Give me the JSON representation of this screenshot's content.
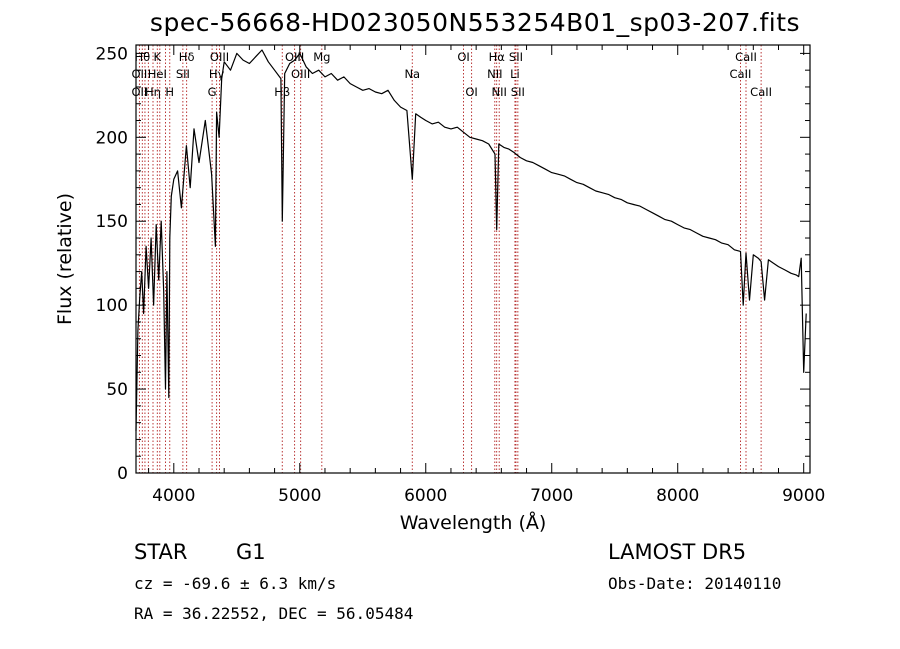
{
  "header": {
    "title": "spec-56668-HD023050N553254B01_sp03-207.fits"
  },
  "footer": {
    "class_label": "STAR",
    "subclass_label": "G1",
    "survey": "LAMOST DR5",
    "redshift": "cz = -69.6 ± 6.3 km/s",
    "obs_date": "Obs-Date: 20140110",
    "coords": "RA =  36.22552, DEC =  56.05484"
  },
  "chart_data": {
    "type": "line",
    "title": "spec-56668-HD023050N553254B01_sp03-207.fits",
    "xlabel": "Wavelength (Å)",
    "ylabel": "Flux (relative)",
    "xlim": [
      3700,
      9050
    ],
    "ylim": [
      0,
      255
    ],
    "xticks": [
      4000,
      5000,
      6000,
      7000,
      8000,
      9000
    ],
    "yticks": [
      0,
      50,
      100,
      150,
      200,
      250
    ],
    "grid": false,
    "series": [
      {
        "x": [
          3700,
          3715,
          3730,
          3745,
          3760,
          3780,
          3800,
          3820,
          3840,
          3860,
          3880,
          3900,
          3920,
          3934,
          3945,
          3960,
          3968,
          3980,
          4000,
          4030,
          4060,
          4100,
          4130,
          4160,
          4200,
          4250,
          4300,
          4330,
          4340,
          4360,
          4380,
          4400,
          4450,
          4500,
          4550,
          4600,
          4650,
          4700,
          4750,
          4800,
          4850,
          4861,
          4880,
          4920,
          4960,
          5000,
          5050,
          5100,
          5150,
          5200,
          5250,
          5300,
          5350,
          5400,
          5450,
          5500,
          5550,
          5600,
          5650,
          5700,
          5750,
          5800,
          5850,
          5893,
          5920,
          5960,
          6000,
          6050,
          6100,
          6150,
          6200,
          6250,
          6300,
          6350,
          6400,
          6450,
          6500,
          6550,
          6563,
          6580,
          6620,
          6660,
          6700,
          6750,
          6800,
          6850,
          6900,
          6950,
          7000,
          7050,
          7100,
          7150,
          7200,
          7250,
          7300,
          7350,
          7400,
          7450,
          7500,
          7550,
          7600,
          7650,
          7700,
          7750,
          7800,
          7850,
          7900,
          7950,
          8000,
          8050,
          8100,
          8150,
          8200,
          8250,
          8300,
          8350,
          8400,
          8450,
          8498,
          8520,
          8542,
          8570,
          8600,
          8640,
          8662,
          8690,
          8720,
          8760,
          8800,
          8850,
          8900,
          8940,
          8960,
          8980,
          9000,
          9020
        ],
        "y": [
          25,
          85,
          105,
          120,
          95,
          135,
          110,
          140,
          100,
          148,
          115,
          150,
          108,
          50,
          120,
          45,
          140,
          165,
          175,
          180,
          158,
          195,
          170,
          205,
          185,
          210,
          178,
          135,
          215,
          200,
          235,
          245,
          240,
          250,
          246,
          244,
          248,
          252,
          245,
          240,
          235,
          150,
          238,
          244,
          246,
          250,
          242,
          238,
          240,
          236,
          238,
          234,
          236,
          232,
          230,
          228,
          229,
          227,
          226,
          228,
          222,
          218,
          216,
          175,
          214,
          212,
          210,
          208,
          209,
          206,
          205,
          206,
          203,
          200,
          199,
          198,
          196,
          190,
          145,
          196,
          194,
          193,
          191,
          188,
          186,
          185,
          183,
          181,
          179,
          178,
          177,
          175,
          173,
          172,
          170,
          168,
          167,
          166,
          164,
          163,
          161,
          160,
          159,
          157,
          155,
          153,
          151,
          150,
          148,
          146,
          145,
          143,
          141,
          140,
          139,
          137,
          136,
          133,
          132,
          100,
          131,
          103,
          130,
          128,
          126,
          103,
          127,
          125,
          123,
          121,
          119,
          118,
          117,
          128,
          60,
          95
        ]
      }
    ],
    "lines": [
      {
        "wl": 3727,
        "labels": [
          {
            "t": "OII",
            "row": 1
          },
          {
            "t": "OII",
            "row": 2
          }
        ],
        "pos": "top"
      },
      {
        "wl": 3750,
        "labels": [
          {
            "t": "Hθ",
            "row": 0
          }
        ],
        "pos": "top"
      },
      {
        "wl": 3771,
        "labels": [],
        "pos": "top"
      },
      {
        "wl": 3798,
        "labels": [],
        "pos": "top"
      },
      {
        "wl": 3835,
        "labels": [
          {
            "t": "Hη",
            "row": 2
          }
        ],
        "pos": "top"
      },
      {
        "wl": 3869,
        "labels": [
          {
            "t": "K",
            "row": 0
          },
          {
            "t": "HeI",
            "row": 1
          }
        ],
        "pos": "top"
      },
      {
        "wl": 3889,
        "labels": [],
        "pos": "top"
      },
      {
        "wl": 3934,
        "labels": [],
        "pos": "top"
      },
      {
        "wl": 3968,
        "labels": [
          {
            "t": "H",
            "row": 2
          }
        ],
        "pos": "top"
      },
      {
        "wl": 4072,
        "labels": [
          {
            "t": "SII",
            "row": 1
          }
        ],
        "pos": "top"
      },
      {
        "wl": 4102,
        "labels": [
          {
            "t": "Hδ",
            "row": 0
          }
        ],
        "pos": "top"
      },
      {
        "wl": 4304,
        "labels": [
          {
            "t": "G",
            "row": 2
          }
        ],
        "pos": "top"
      },
      {
        "wl": 4340,
        "labels": [
          {
            "t": "Hγ",
            "row": 1
          }
        ],
        "pos": "top"
      },
      {
        "wl": 4363,
        "labels": [
          {
            "t": "OIII",
            "row": 0
          }
        ],
        "pos": "top"
      },
      {
        "wl": 4861,
        "labels": [
          {
            "t": "Hβ",
            "row": 2
          }
        ],
        "pos": "top"
      },
      {
        "wl": 4959,
        "labels": [
          {
            "t": "OIII",
            "row": 0
          }
        ],
        "pos": "top"
      },
      {
        "wl": 5007,
        "labels": [
          {
            "t": "OIII",
            "row": 1
          }
        ],
        "pos": "top"
      },
      {
        "wl": 5175,
        "labels": [
          {
            "t": "Mg",
            "row": 0
          }
        ],
        "pos": "top"
      },
      {
        "wl": 5893,
        "labels": [
          {
            "t": "Na",
            "row": 1
          }
        ],
        "pos": "top"
      },
      {
        "wl": 6300,
        "labels": [
          {
            "t": "OI",
            "row": 0
          }
        ],
        "pos": "top"
      },
      {
        "wl": 6364,
        "labels": [
          {
            "t": "OI",
            "row": 2
          }
        ],
        "pos": "top"
      },
      {
        "wl": 6548,
        "labels": [
          {
            "t": "NII",
            "row": 1
          }
        ],
        "pos": "top"
      },
      {
        "wl": 6563,
        "labels": [
          {
            "t": "Hα",
            "row": 0
          }
        ],
        "pos": "top"
      },
      {
        "wl": 6583,
        "labels": [
          {
            "t": "NII",
            "row": 2
          }
        ],
        "pos": "top"
      },
      {
        "wl": 6708,
        "labels": [
          {
            "t": "Li",
            "row": 1
          }
        ],
        "pos": "top"
      },
      {
        "wl": 6716,
        "labels": [
          {
            "t": "SII",
            "row": 0
          }
        ],
        "pos": "top"
      },
      {
        "wl": 6731,
        "labels": [
          {
            "t": "SII",
            "row": 2
          }
        ],
        "pos": "top"
      },
      {
        "wl": 8498,
        "labels": [
          {
            "t": "CaII",
            "row": 1
          }
        ],
        "pos": "top"
      },
      {
        "wl": 8542,
        "labels": [
          {
            "t": "CaII",
            "row": 0
          }
        ],
        "pos": "top"
      },
      {
        "wl": 8662,
        "labels": [
          {
            "t": "CaII",
            "row": 2
          }
        ],
        "pos": "top"
      }
    ],
    "colors": {
      "spectrum": "#000000",
      "lines": "#b22222",
      "axis": "#000000"
    }
  }
}
